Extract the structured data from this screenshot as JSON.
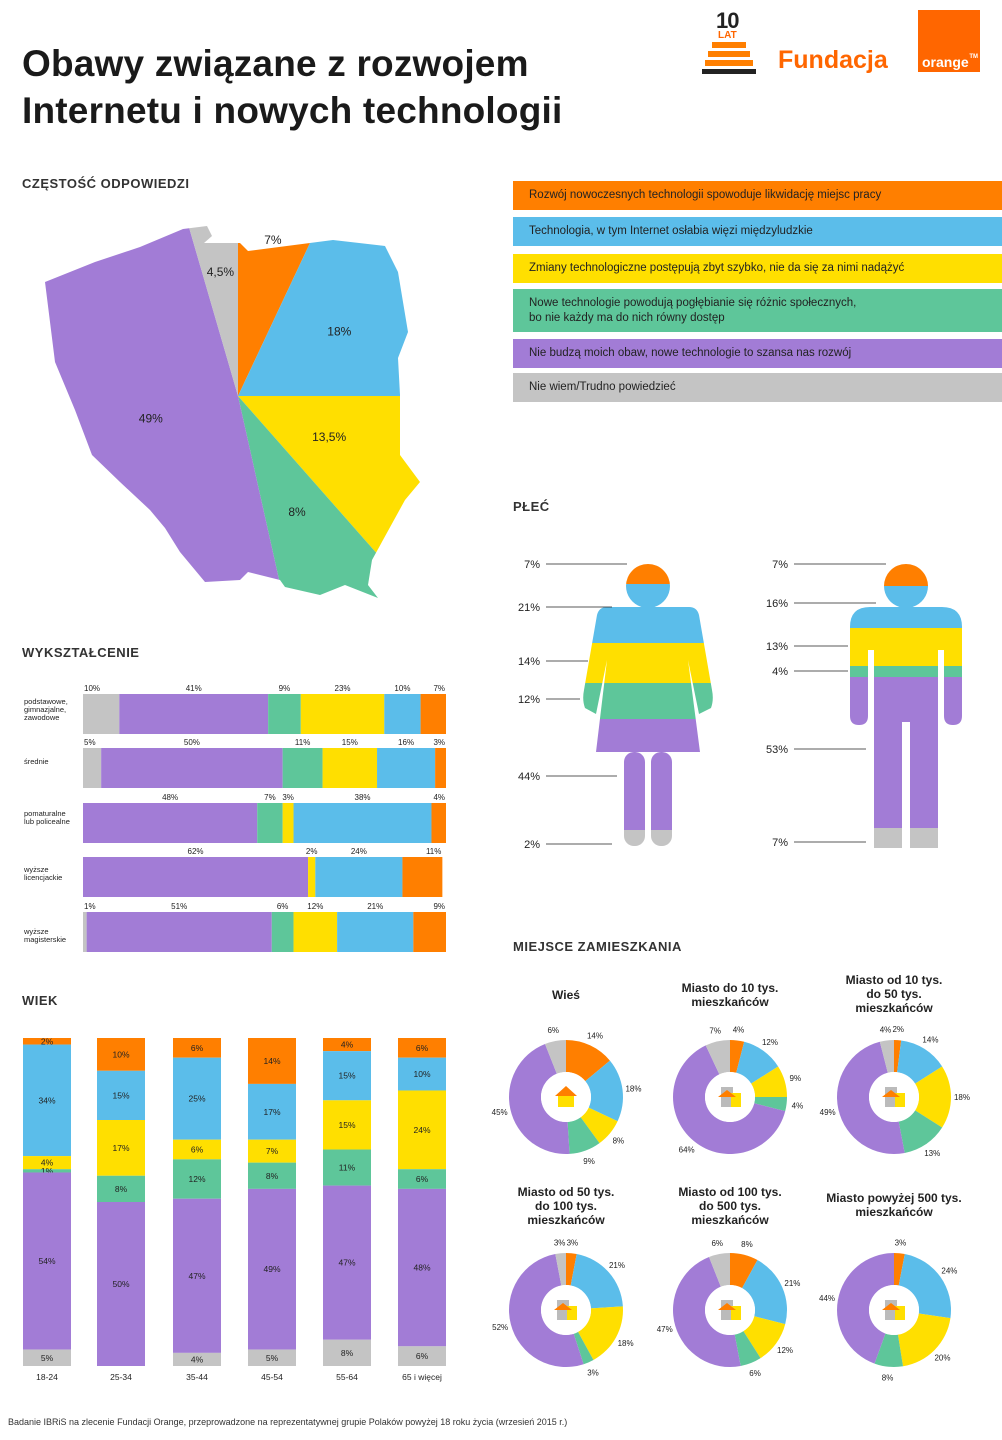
{
  "title_line1": "Obawy związane z rozwojem",
  "title_line2": "Internetu i nowych technologii",
  "logo": {
    "years": "10",
    "years_label": "LAT",
    "fundacja": "Fundacja",
    "brand": "orange",
    "tm": "TM"
  },
  "colors": {
    "orange": "#ff7f00",
    "blue": "#5bbdea",
    "yellow": "#ffdf00",
    "green": "#5ec69a",
    "purple": "#a27cd6",
    "gray": "#c4c4c4"
  },
  "sections": {
    "frequency": "CZĘSTOŚĆ ODPOWIEDZI",
    "education": "WYKSZTAŁCENIE",
    "age": "WIEK",
    "gender": "PŁEĆ",
    "residence": "MIEJSCE ZAMIESZKANIA"
  },
  "legend": [
    {
      "label": "Rozwój nowoczesnych technologii spowoduje likwidację miejsc pracy",
      "color": "#ff7f00"
    },
    {
      "label": "Technologia, w tym Internet osłabia więzi międzyludzkie",
      "color": "#5bbdea"
    },
    {
      "label": "Zmiany technologiczne postępują zbyt szybko, nie da się za nimi nadążyć",
      "color": "#ffdf00"
    },
    {
      "label_line1": "Nowe technologie powodują pogłębianie się różnic społecznych,",
      "label_line2": "bo nie każdy ma do nich równy dostęp",
      "color": "#5ec69a"
    },
    {
      "label": "Nie budzą moich obaw, nowe technologie to szansa nas rozwój",
      "color": "#a27cd6"
    },
    {
      "label": "Nie wiem/Trudno powiedzieć",
      "color": "#c4c4c4"
    }
  ],
  "footer": "Badanie IBRiS na zlecenie Fundacji Orange, przeprowadzone na reprezentatywnej grupie Polaków powyżej 18 roku życia (wrzesień 2015 r.)",
  "chart_data": [
    {
      "type": "pie",
      "title": "CZĘSTOŚĆ ODPOWIEDZI",
      "slices": [
        {
          "key": "orange",
          "label": "7%",
          "value": 7
        },
        {
          "key": "blue",
          "label": "18%",
          "value": 18
        },
        {
          "key": "yellow",
          "label": "13,5%",
          "value": 13.5
        },
        {
          "key": "green",
          "label": "8%",
          "value": 8
        },
        {
          "key": "purple",
          "label": "49%",
          "value": 49
        },
        {
          "key": "gray",
          "label": "4,5%",
          "value": 4.5
        }
      ]
    },
    {
      "type": "bar",
      "title": "WYKSZTAŁCENIE",
      "orientation": "horizontal-stacked",
      "order": [
        "gray",
        "purple",
        "green",
        "yellow",
        "blue",
        "orange"
      ],
      "rows": [
        {
          "label": [
            "podstawowe,",
            "gimnazjalne,",
            "zawodowe"
          ],
          "values": [
            10,
            41,
            9,
            23,
            10,
            7
          ]
        },
        {
          "label": [
            "średnie"
          ],
          "values": [
            5,
            50,
            11,
            15,
            16,
            3
          ]
        },
        {
          "label": [
            "pomaturalne",
            "lub policealne"
          ],
          "values": [
            0,
            48,
            7,
            3,
            38,
            4
          ]
        },
        {
          "label": [
            "wyższe",
            "licencjackie"
          ],
          "values": [
            0,
            62,
            0,
            2,
            24,
            11
          ]
        },
        {
          "label": [
            "wyższe",
            "magisterskie"
          ],
          "values": [
            1,
            51,
            6,
            12,
            21,
            9
          ]
        }
      ]
    },
    {
      "type": "bar",
      "title": "WIEK",
      "orientation": "vertical-stacked",
      "order_top_to_bottom": [
        "orange",
        "blue",
        "yellow",
        "green",
        "purple",
        "gray"
      ],
      "columns": [
        {
          "label": "18-24",
          "values": [
            2,
            34,
            4,
            1,
            54,
            5
          ]
        },
        {
          "label": "25-34",
          "values": [
            10,
            15,
            17,
            8,
            50,
            0
          ]
        },
        {
          "label": "35-44",
          "values": [
            6,
            25,
            6,
            12,
            47,
            4
          ]
        },
        {
          "label": "45-54",
          "values": [
            14,
            17,
            7,
            8,
            49,
            5
          ]
        },
        {
          "label": "55-64",
          "values": [
            4,
            15,
            15,
            11,
            47,
            8
          ]
        },
        {
          "label": "65 i więcej",
          "values": [
            6,
            10,
            24,
            6,
            48,
            6
          ]
        }
      ]
    },
    {
      "type": "bar",
      "title": "PŁEĆ",
      "orientation": "figure-stacked",
      "series": [
        {
          "name": "kobiety",
          "labels": [
            "7%",
            "21%",
            "14%",
            "12%",
            "44%",
            "2%"
          ],
          "values": [
            7,
            21,
            14,
            12,
            44,
            2
          ]
        },
        {
          "name": "mężczyźni",
          "labels": [
            "7%",
            "16%",
            "13%",
            "4%",
            "53%",
            "7%"
          ],
          "values": [
            7,
            16,
            13,
            4,
            53,
            7
          ]
        }
      ]
    },
    {
      "type": "pie",
      "title": "MIEJSCE ZAMIESZKANIA",
      "order": [
        "orange",
        "blue",
        "yellow",
        "green",
        "purple",
        "gray"
      ],
      "donuts": [
        {
          "title": [
            "Wieś"
          ],
          "values": [
            14,
            18,
            8,
            9,
            45,
            6
          ]
        },
        {
          "title": [
            "Miasto do 10 tys.",
            "mieszkańców"
          ],
          "values": [
            4,
            12,
            9,
            4,
            64,
            7
          ]
        },
        {
          "title": [
            "Miasto od 10 tys.",
            "do 50 tys.",
            "mieszkańców"
          ],
          "values": [
            2,
            14,
            18,
            13,
            49,
            4
          ]
        },
        {
          "title": [
            "Miasto od 50 tys.",
            "do 100 tys.",
            "mieszkańców"
          ],
          "values": [
            3,
            21,
            18,
            3,
            52,
            3
          ]
        },
        {
          "title": [
            "Miasto od 100 tys.",
            "do 500 tys.",
            "mieszkańców"
          ],
          "values": [
            8,
            21,
            12,
            6,
            47,
            6
          ]
        },
        {
          "title": [
            "Miasto powyżej 500 tys.",
            "mieszkańców"
          ],
          "values": [
            3,
            24,
            20,
            8,
            44,
            0
          ]
        }
      ]
    }
  ]
}
